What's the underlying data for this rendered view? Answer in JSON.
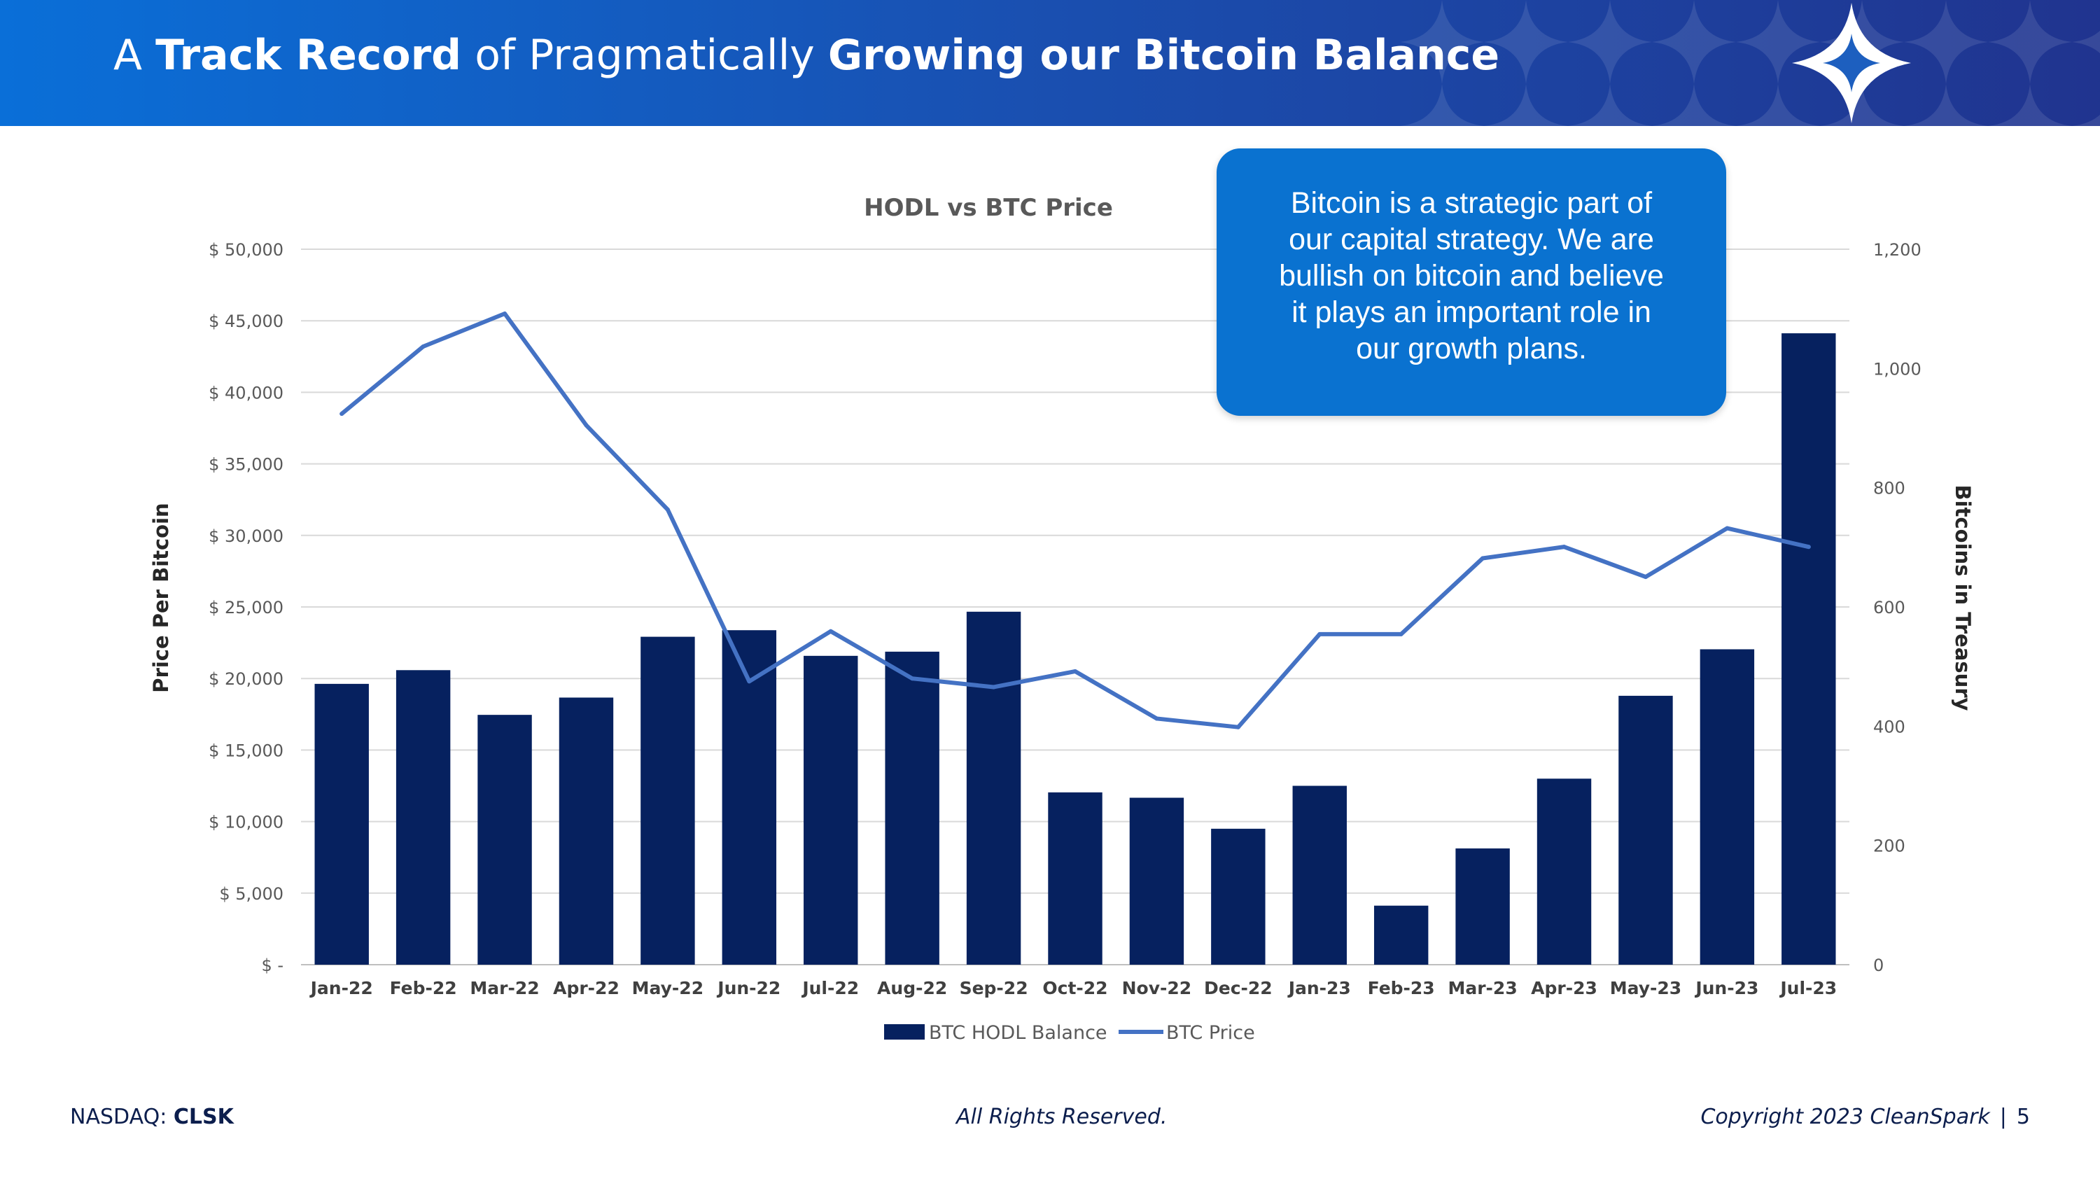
{
  "header": {
    "title_parts": [
      "A ",
      "Track Record",
      " of Pragmatically ",
      "Growing our Bitcoin Balance"
    ]
  },
  "logo_icon": "star-diamond-logo-icon",
  "callout": {
    "lines": [
      "Bitcoin is a strategic part of",
      "our capital strategy. We are",
      "bullish on bitcoin and believe",
      "it plays an important role in",
      "our growth plans."
    ]
  },
  "chart_data": {
    "type": "bar",
    "title": "HODL vs BTC Price",
    "ylabel": "Price Per Bitcoin",
    "y2label": "Bitcoins in Treasury",
    "categories": [
      "Jan-22",
      "Feb-22",
      "Mar-22",
      "Apr-22",
      "May-22",
      "Jun-22",
      "Jul-22",
      "Aug-22",
      "Sep-22",
      "Oct-22",
      "Nov-22",
      "Dec-22",
      "Jan-23",
      "Feb-23",
      "Mar-23",
      "Apr-23",
      "May-23",
      "Jun-23",
      "Jul-23"
    ],
    "y_ticks": [
      "$ -",
      "$ 5,000",
      "$ 10,000",
      "$ 15,000",
      "$ 20,000",
      "$ 25,000",
      "$ 30,000",
      "$ 35,000",
      "$ 40,000",
      "$ 45,000",
      "$ 50,000"
    ],
    "y2_ticks": [
      "0",
      "200",
      "400",
      "600",
      "800",
      "1,000",
      "1,200"
    ],
    "ylim": [
      0,
      50000
    ],
    "y2lim": [
      0,
      1200
    ],
    "grid": true,
    "legend_position": "bottom",
    "series": [
      {
        "name": "BTC HODL Balance",
        "type": "bar",
        "axis": "right",
        "color": "#06215f",
        "values": [
          471,
          494,
          419,
          448,
          550,
          561,
          518,
          525,
          592,
          289,
          280,
          228,
          300,
          99,
          195,
          312,
          451,
          529,
          1059
        ]
      },
      {
        "name": "BTC Price",
        "type": "line",
        "axis": "left",
        "color": "#4472c4",
        "values": [
          38500,
          43200,
          45500,
          37700,
          31800,
          19800,
          23300,
          20000,
          19400,
          20500,
          17200,
          16600,
          23100,
          23100,
          28400,
          29200,
          27100,
          30500,
          29200
        ]
      }
    ]
  },
  "footer": {
    "exchange_label": "NASDAQ: ",
    "ticker": "CLSK",
    "rights": "All Rights Reserved.",
    "copyright": "Copyright 2023 CleanSpark",
    "separator": "|",
    "page_number": "5"
  }
}
